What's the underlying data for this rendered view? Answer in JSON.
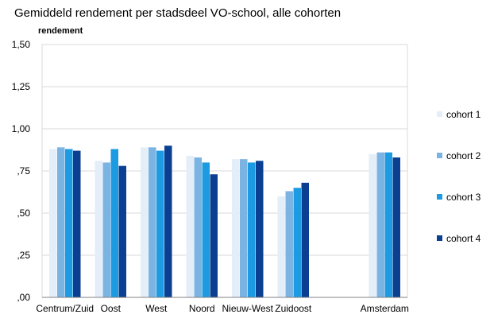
{
  "chart_data": {
    "type": "bar",
    "title": "Gemiddeld rendement per stadsdeel VO-school, alle cohorten",
    "ylabel": "rendement",
    "xlabel": "",
    "ylim": [
      0,
      1.5
    ],
    "grid": true,
    "legend_position": "right",
    "yticks": [
      {
        "value": 0.0,
        "label": ",00"
      },
      {
        "value": 0.25,
        "label": ",25"
      },
      {
        "value": 0.5,
        "label": ",50"
      },
      {
        "value": 0.75,
        "label": ",75"
      },
      {
        "value": 1.0,
        "label": "1,00"
      },
      {
        "value": 1.25,
        "label": "1,25"
      },
      {
        "value": 1.5,
        "label": "1,50"
      }
    ],
    "categories": [
      "Centrum/Zuid",
      "Oost",
      "West",
      "Noord",
      "Nieuw-West",
      "Zuidoost",
      "",
      "Amsterdam"
    ],
    "series": [
      {
        "name": "cohort 1",
        "color": "#e3eef9",
        "values": [
          0.88,
          0.81,
          0.89,
          0.84,
          0.82,
          0.6,
          null,
          0.85
        ]
      },
      {
        "name": "cohort 2",
        "color": "#7bb3e3",
        "values": [
          0.89,
          0.8,
          0.89,
          0.83,
          0.82,
          0.63,
          null,
          0.86
        ]
      },
      {
        "name": "cohort 3",
        "color": "#1c9be2",
        "values": [
          0.88,
          0.88,
          0.87,
          0.8,
          0.8,
          0.65,
          null,
          0.86
        ]
      },
      {
        "name": "cohort 4",
        "color": "#0b3f91",
        "values": [
          0.87,
          0.78,
          0.9,
          0.73,
          0.81,
          0.68,
          null,
          0.83
        ]
      }
    ]
  }
}
